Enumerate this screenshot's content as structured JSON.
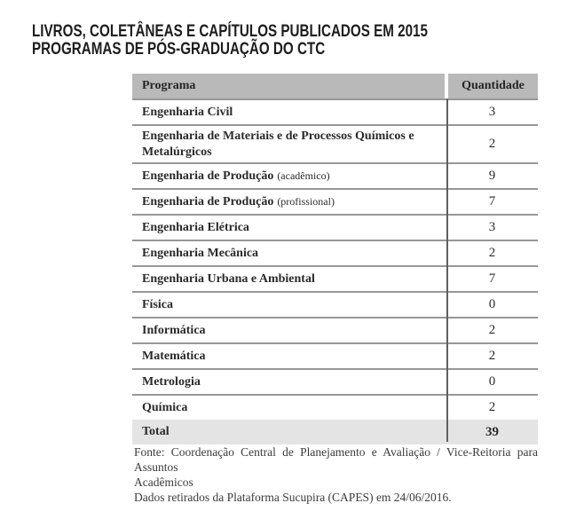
{
  "title": {
    "line1": "LIVROS, COLETÂNEAS E CAPÍTULOS PUBLICADOS EM 2015",
    "line2": "PROGRAMAS DE PÓS-GRADUAÇÃO DO CTC"
  },
  "table": {
    "columns": {
      "program": "Programa",
      "quantity": "Quantidade"
    },
    "rows": [
      {
        "name": "Engenharia Civil",
        "note": "",
        "qty": "3"
      },
      {
        "name": "Engenharia de Materiais e de Processos Químicos e Metalúrgicos",
        "note": "",
        "qty": "2"
      },
      {
        "name": "Engenharia de Produção",
        "note": "(acadêmico)",
        "qty": "9"
      },
      {
        "name": "Engenharia de Produção",
        "note": "(profissional)",
        "qty": "7"
      },
      {
        "name": "Engenharia Elétrica",
        "note": "",
        "qty": "3"
      },
      {
        "name": "Engenharia Mecânica",
        "note": "",
        "qty": "2"
      },
      {
        "name": "Engenharia Urbana e Ambiental",
        "note": "",
        "qty": "7"
      },
      {
        "name": "Física",
        "note": "",
        "qty": "0"
      },
      {
        "name": "Informática",
        "note": "",
        "qty": "2"
      },
      {
        "name": "Matemática",
        "note": "",
        "qty": "2"
      },
      {
        "name": "Metrologia",
        "note": "",
        "qty": "0"
      },
      {
        "name": "Química",
        "note": "",
        "qty": "2"
      }
    ],
    "total": {
      "label": "Total",
      "qty": "39"
    }
  },
  "footer": {
    "line1": "Fonte: Coordenação Central de Planejamento e Avaliação / Vice-Reitoria para Assuntos",
    "line2": "Acadêmicos",
    "line3": "Dados retirados da Plataforma Sucupira (CAPES) em 24/06/2016."
  },
  "colors": {
    "header_bg": "#b9b9b9",
    "total_row_bg": "#e4e4e4",
    "row_separator": "#979797",
    "column_divider": "#5f5f5f",
    "title_text": "#1d1d1d",
    "body_text": "#2a2a2a"
  }
}
